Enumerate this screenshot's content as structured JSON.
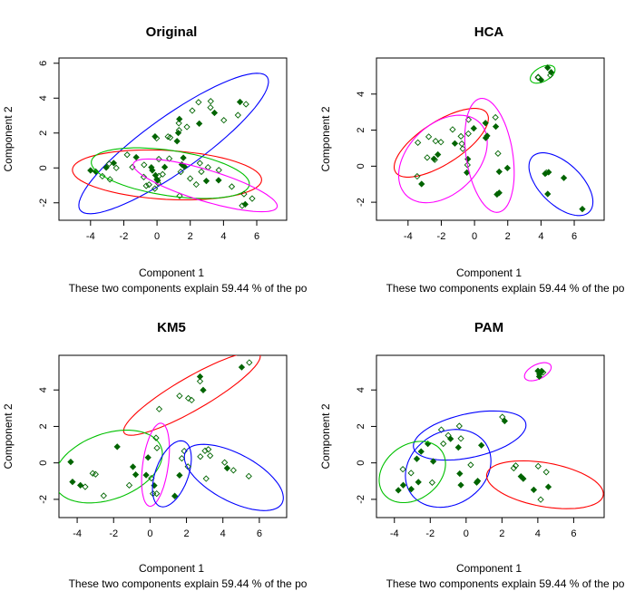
{
  "chart_data": [
    {
      "type": "scatter",
      "title": "Original",
      "xlabel": "Component 1",
      "ylabel": "Component 2",
      "subtitle": "These two components explain 59.44 % of the po",
      "xlim": [
        -5.9,
        7.8
      ],
      "ylim": [
        -3.0,
        6.3
      ],
      "xticks": [
        -4,
        -2,
        0,
        2,
        4,
        6
      ],
      "yticks": [
        -2,
        0,
        2,
        4,
        6
      ],
      "point_color": "#006400",
      "clusters": [
        {
          "color": "#0000ff",
          "center": [
            1.0,
            1.4
          ],
          "a": 6.8,
          "b": 1.6,
          "angle_deg": 34
        },
        {
          "color": "#ff0000",
          "center": [
            0.6,
            -0.4
          ],
          "a": 5.7,
          "b": 1.4,
          "angle_deg": -3
        },
        {
          "color": "#00c000",
          "center": [
            0.8,
            -0.3
          ],
          "a": 4.8,
          "b": 1.3,
          "angle_deg": -8
        },
        {
          "color": "#ff00ff",
          "center": [
            2.9,
            -1.0
          ],
          "a": 4.5,
          "b": 0.9,
          "angle_deg": -16
        }
      ]
    },
    {
      "type": "scatter",
      "title": "HCA",
      "xlabel": "Component 1",
      "ylabel": "Component 2",
      "subtitle": "These two components explain 59.44 % of the po",
      "xlim": [
        -5.9,
        7.8
      ],
      "ylim": [
        -3.0,
        6.0
      ],
      "xticks": [
        -4,
        -2,
        0,
        2,
        4,
        6
      ],
      "yticks": [
        -2,
        0,
        2,
        4
      ],
      "point_color": "#006400",
      "clusters": [
        {
          "color": "#ff0000",
          "center": [
            -2.0,
            1.3
          ],
          "a": 3.2,
          "b": 1.2,
          "angle_deg": 30
        },
        {
          "color": "#ff00ff",
          "center": [
            -1.9,
            0.4
          ],
          "a": 3.0,
          "b": 2.0,
          "angle_deg": 38
        },
        {
          "color": "#ff00ff",
          "center": [
            0.9,
            0.6
          ],
          "a": 3.2,
          "b": 1.4,
          "angle_deg": -80
        },
        {
          "color": "#0000ff",
          "center": [
            5.2,
            -1.0
          ],
          "a": 2.3,
          "b": 1.2,
          "angle_deg": -40
        },
        {
          "color": "#00c000",
          "center": [
            4.1,
            5.1
          ],
          "a": 0.8,
          "b": 0.4,
          "angle_deg": 25
        }
      ]
    },
    {
      "type": "scatter",
      "title": "KM5",
      "xlabel": "Component 1",
      "ylabel": "Component 2",
      "subtitle": "These two components explain 59.44 % of the po",
      "xlim": [
        -5.0,
        7.5
      ],
      "ylim": [
        -3.0,
        5.9
      ],
      "xticks": [
        -4,
        -2,
        0,
        2,
        4,
        6
      ],
      "yticks": [
        -2,
        0,
        2,
        4
      ],
      "point_color": "#006400",
      "clusters": [
        {
          "color": "#ff0000",
          "center": [
            2.3,
            3.8
          ],
          "a": 4.3,
          "b": 0.9,
          "angle_deg": 30
        },
        {
          "color": "#00c000",
          "center": [
            -2.3,
            -0.2
          ],
          "a": 3.1,
          "b": 1.8,
          "angle_deg": 20
        },
        {
          "color": "#ff00ff",
          "center": [
            0.3,
            -0.1
          ],
          "a": 2.3,
          "b": 0.7,
          "angle_deg": 82
        },
        {
          "color": "#0000ff",
          "center": [
            1.2,
            -0.6
          ],
          "a": 1.9,
          "b": 0.9,
          "angle_deg": 70
        },
        {
          "color": "#0000ff",
          "center": [
            4.6,
            -0.8
          ],
          "a": 3.0,
          "b": 1.3,
          "angle_deg": -28
        }
      ]
    },
    {
      "type": "scatter",
      "title": "PAM",
      "xlabel": "Component 1",
      "ylabel": "Component 2",
      "subtitle": "These two components explain 59.44 % of the po",
      "xlim": [
        -5.0,
        7.7
      ],
      "ylim": [
        -3.0,
        5.9
      ],
      "xticks": [
        -4,
        -2,
        0,
        2,
        4,
        6
      ],
      "yticks": [
        -2,
        0,
        2,
        4
      ],
      "point_color": "#006400",
      "clusters": [
        {
          "color": "#0000ff",
          "center": [
            0.2,
            1.5
          ],
          "a": 3.2,
          "b": 1.2,
          "angle_deg": 12
        },
        {
          "color": "#0000ff",
          "center": [
            -1.0,
            -0.3
          ],
          "a": 2.5,
          "b": 2.0,
          "angle_deg": 30
        },
        {
          "color": "#00c000",
          "center": [
            -3.0,
            -0.5
          ],
          "a": 2.0,
          "b": 1.5,
          "angle_deg": 35
        },
        {
          "color": "#ff0000",
          "center": [
            4.4,
            -1.2
          ],
          "a": 3.3,
          "b": 1.2,
          "angle_deg": -10
        },
        {
          "color": "#ff00ff",
          "center": [
            4.0,
            5.0
          ],
          "a": 0.8,
          "b": 0.4,
          "angle_deg": 25
        }
      ]
    }
  ]
}
